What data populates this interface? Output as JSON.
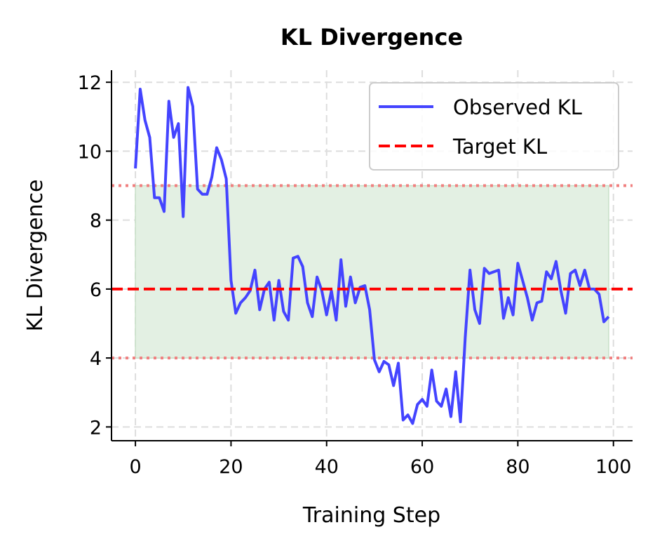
{
  "chart_data": {
    "type": "line",
    "title": "KL Divergence",
    "xlabel": "Training Step",
    "ylabel": "KL Divergence",
    "xlim": [
      -5,
      104
    ],
    "ylim": [
      1.6,
      12.35
    ],
    "xticks": [
      0,
      20,
      40,
      60,
      80,
      100
    ],
    "yticks": [
      2,
      4,
      6,
      8,
      10,
      12
    ],
    "grid": true,
    "legend_position": "top-right",
    "series": [
      {
        "name": "Observed KL",
        "color": "#4444ff",
        "x_start": 0,
        "values": [
          9.5,
          11.8,
          10.9,
          10.4,
          8.65,
          8.65,
          8.25,
          11.45,
          10.4,
          10.8,
          8.1,
          11.85,
          11.3,
          8.9,
          8.75,
          8.75,
          9.25,
          10.1,
          9.75,
          9.2,
          6.25,
          5.3,
          5.6,
          5.75,
          5.95,
          6.55,
          5.4,
          6.0,
          6.2,
          5.1,
          6.25,
          5.35,
          5.1,
          6.9,
          6.95,
          6.65,
          5.6,
          5.2,
          6.35,
          5.95,
          5.25,
          5.95,
          5.1,
          6.85,
          5.5,
          6.35,
          5.6,
          6.05,
          6.1,
          5.4,
          3.95,
          3.6,
          3.9,
          3.8,
          3.2,
          3.85,
          2.2,
          2.35,
          2.1,
          2.65,
          2.8,
          2.6,
          3.65,
          2.75,
          2.6,
          3.1,
          2.3,
          3.6,
          2.15,
          4.6,
          6.55,
          5.4,
          5.0,
          6.6,
          6.45,
          6.5,
          6.55,
          5.15,
          5.75,
          5.25,
          6.75,
          6.25,
          5.75,
          5.1,
          5.6,
          5.65,
          6.5,
          6.3,
          6.8,
          5.95,
          5.3,
          6.45,
          6.55,
          6.1,
          6.55,
          6.0,
          6.0,
          5.85,
          5.05,
          5.2
        ]
      },
      {
        "name": "Target KL",
        "color": "#ff0000",
        "style": "dashed",
        "y": 6
      }
    ],
    "reference_lines": [
      {
        "y": 4,
        "color": "#f08080",
        "style": "dotted"
      },
      {
        "y": 9,
        "color": "#f08080",
        "style": "dotted"
      }
    ],
    "shaded_band": {
      "x_range": [
        0,
        99
      ],
      "y_range": [
        4,
        9
      ],
      "color": "#e3f0e3"
    }
  }
}
